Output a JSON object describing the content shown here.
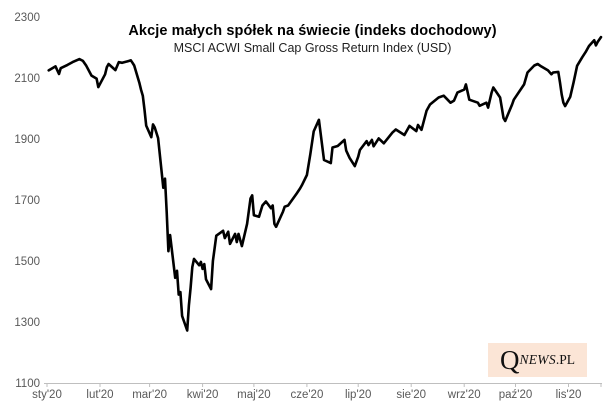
{
  "chart_data": {
    "type": "line",
    "title": "Akcje małych spółek na świecie (indeks dochodowy)",
    "subtitle": "MSCI ACWI Small Cap Gross Return Index (USD)",
    "xlabel": "",
    "ylabel": "",
    "ylim": [
      1100,
      2300
    ],
    "y_ticks": [
      2300,
      2100,
      1900,
      1700,
      1500,
      1300,
      1100
    ],
    "x_tick_labels": [
      "sty'20",
      "lut'20",
      "mar'20",
      "kwi'20",
      "maj'20",
      "cze'20",
      "lip'20",
      "sie'20",
      "wrz'20",
      "paź'20",
      "lis'20"
    ],
    "x_domain": [
      "2020-01-01",
      "2020-11-20"
    ],
    "grid": false,
    "legend": false,
    "line_color": "#000000",
    "axis_color": "#BFBFBF",
    "tick_label_color": "#595959",
    "series": [
      {
        "name": "MSCI ACWI Small Cap Gross Return Index (USD)",
        "dates": [
          "2020-01-02",
          "2020-01-06",
          "2020-01-08",
          "2020-01-09",
          "2020-01-13",
          "2020-01-16",
          "2020-01-20",
          "2020-01-22",
          "2020-01-24",
          "2020-01-27",
          "2020-01-30",
          "2020-01-31",
          "2020-02-04",
          "2020-02-05",
          "2020-02-06",
          "2020-02-10",
          "2020-02-12",
          "2020-02-14",
          "2020-02-18",
          "2020-02-19",
          "2020-02-20",
          "2020-02-21",
          "2020-02-24",
          "2020-02-25",
          "2020-02-26",
          "2020-02-27",
          "2020-02-28",
          "2020-03-02",
          "2020-03-03",
          "2020-03-04",
          "2020-03-06",
          "2020-03-09",
          "2020-03-10",
          "2020-03-11",
          "2020-03-12",
          "2020-03-13",
          "2020-03-16",
          "2020-03-17",
          "2020-03-18",
          "2020-03-19",
          "2020-03-20",
          "2020-03-23",
          "2020-03-24",
          "2020-03-25",
          "2020-03-26",
          "2020-03-27",
          "2020-03-30",
          "2020-03-31",
          "2020-04-01",
          "2020-04-02",
          "2020-04-03",
          "2020-04-06",
          "2020-04-07",
          "2020-04-09",
          "2020-04-13",
          "2020-04-14",
          "2020-04-16",
          "2020-04-17",
          "2020-04-20",
          "2020-04-21",
          "2020-04-22",
          "2020-04-24",
          "2020-04-27",
          "2020-04-29",
          "2020-04-30",
          "2020-05-01",
          "2020-05-04",
          "2020-05-06",
          "2020-05-08",
          "2020-05-11",
          "2020-05-12",
          "2020-05-13",
          "2020-05-14",
          "2020-05-18",
          "2020-05-19",
          "2020-05-21",
          "2020-05-26",
          "2020-05-28",
          "2020-05-29",
          "2020-06-01",
          "2020-06-03",
          "2020-06-05",
          "2020-06-08",
          "2020-06-11",
          "2020-06-15",
          "2020-06-16",
          "2020-06-19",
          "2020-06-23",
          "2020-06-24",
          "2020-06-26",
          "2020-06-29",
          "2020-07-01",
          "2020-07-02",
          "2020-07-06",
          "2020-07-07",
          "2020-07-09",
          "2020-07-10",
          "2020-07-13",
          "2020-07-16",
          "2020-07-21",
          "2020-07-23",
          "2020-07-28",
          "2020-07-31",
          "2020-08-04",
          "2020-08-05",
          "2020-08-07",
          "2020-08-10",
          "2020-08-12",
          "2020-08-17",
          "2020-08-20",
          "2020-08-24",
          "2020-08-26",
          "2020-08-28",
          "2020-09-01",
          "2020-09-02",
          "2020-09-04",
          "2020-09-09",
          "2020-09-10",
          "2020-09-14",
          "2020-09-15",
          "2020-09-17",
          "2020-09-18",
          "2020-09-22",
          "2020-09-23",
          "2020-09-24",
          "2020-09-25",
          "2020-09-29",
          "2020-09-30",
          "2020-10-06",
          "2020-10-08",
          "2020-10-12",
          "2020-10-14",
          "2020-10-16",
          "2020-10-20",
          "2020-10-22",
          "2020-10-23",
          "2020-10-26",
          "2020-10-27",
          "2020-10-28",
          "2020-10-29",
          "2020-10-30",
          "2020-11-02",
          "2020-11-04",
          "2020-11-06",
          "2020-11-09",
          "2020-11-11",
          "2020-11-13",
          "2020-11-16",
          "2020-11-17",
          "2020-11-18",
          "2020-11-20"
        ],
        "values": [
          2125,
          2138,
          2113,
          2132,
          2143,
          2152,
          2162,
          2156,
          2140,
          2108,
          2098,
          2070,
          2112,
          2135,
          2146,
          2126,
          2152,
          2150,
          2156,
          2158,
          2150,
          2141,
          2085,
          2062,
          2042,
          1996,
          1944,
          1906,
          1948,
          1938,
          1903,
          1740,
          1770,
          1660,
          1532,
          1585,
          1445,
          1468,
          1390,
          1398,
          1320,
          1272,
          1355,
          1412,
          1480,
          1507,
          1486,
          1497,
          1474,
          1490,
          1440,
          1408,
          1500,
          1583,
          1599,
          1575,
          1596,
          1556,
          1589,
          1562,
          1589,
          1549,
          1622,
          1705,
          1715,
          1650,
          1645,
          1682,
          1695,
          1673,
          1682,
          1622,
          1612,
          1662,
          1678,
          1682,
          1721,
          1738,
          1748,
          1782,
          1850,
          1925,
          1963,
          1831,
          1821,
          1872,
          1877,
          1897,
          1862,
          1838,
          1811,
          1842,
          1864,
          1893,
          1880,
          1897,
          1876,
          1902,
          1886,
          1921,
          1931,
          1913,
          1943,
          1926,
          1946,
          1930,
          1993,
          2013,
          2036,
          2042,
          2019,
          2026,
          2052,
          2062,
          2079,
          2029,
          2019,
          2009,
          2019,
          2003,
          2052,
          2069,
          2036,
          2003,
          1969,
          1959,
          2013,
          2029,
          2079,
          2118,
          2141,
          2146,
          2138,
          2125,
          2112,
          2118,
          2120,
          2085,
          2046,
          2019,
          2008,
          2038,
          2086,
          2140,
          2168,
          2185,
          2205,
          2224,
          2207,
          2218,
          2234
        ]
      }
    ]
  },
  "logo": {
    "q": "Q",
    "news": "NEWS",
    "pl": ".PL",
    "background": "#FBE5D6"
  }
}
